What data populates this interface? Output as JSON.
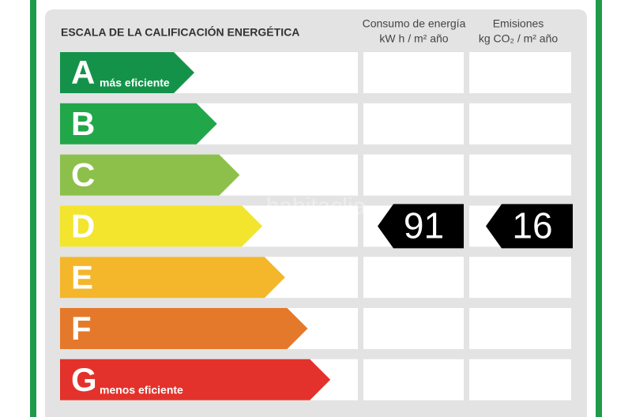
{
  "title": "ESCALA DE LA CALIFICACIÓN ENERGÉTICA",
  "columns": [
    {
      "heading": "Consumo de energía",
      "unit": "kW h  / m² año"
    },
    {
      "heading": "Emisiones",
      "unit": "kg CO₂  / m² año"
    }
  ],
  "ratings": [
    {
      "letter": "A",
      "note": "más eficiente",
      "color": "#14924a"
    },
    {
      "letter": "B",
      "color": "#22a64a"
    },
    {
      "letter": "C",
      "color": "#8dc04b"
    },
    {
      "letter": "D",
      "color": "#f3e52e"
    },
    {
      "letter": "E",
      "color": "#f4b62a"
    },
    {
      "letter": "F",
      "color": "#e5792b"
    },
    {
      "letter": "G",
      "note": "menos eficiente",
      "color": "#e3322b"
    }
  ],
  "result": {
    "rating": "D",
    "consumption": 91,
    "emissions": 16
  },
  "watermark": "habitaclia"
}
